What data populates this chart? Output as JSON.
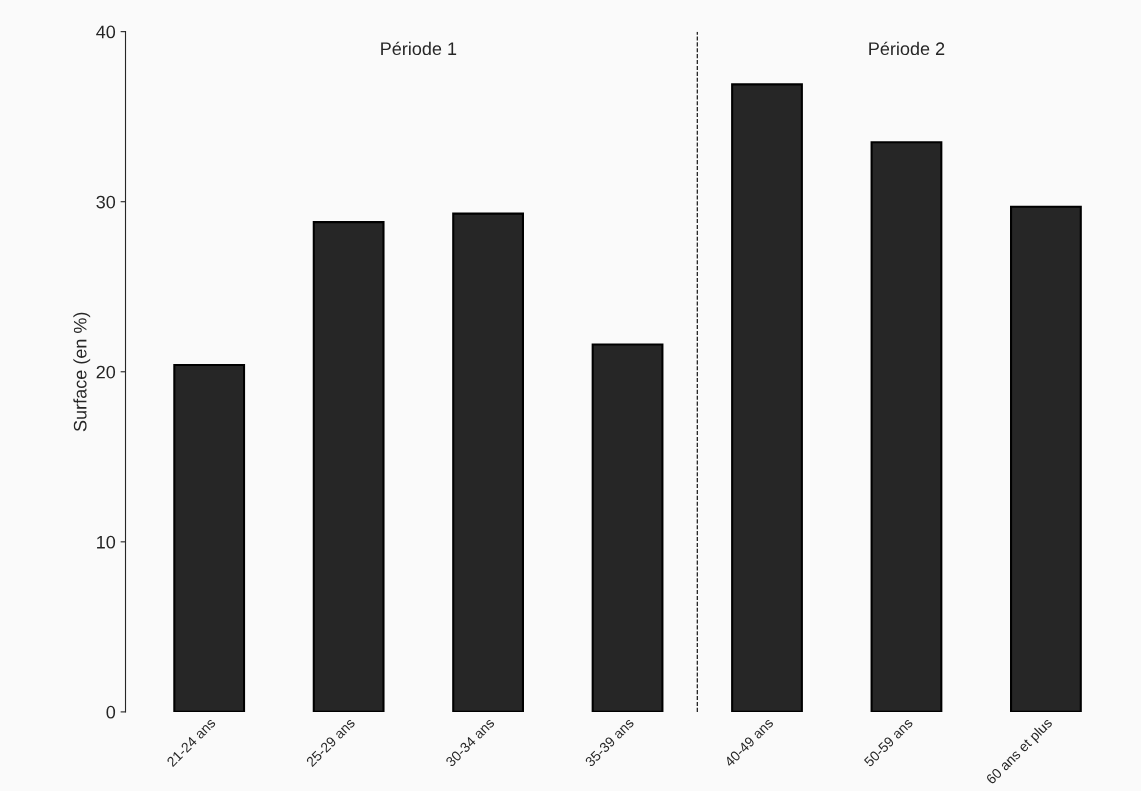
{
  "chart_data": {
    "type": "bar",
    "ylabel": "Surface (en %)",
    "categories": [
      "21-24 ans",
      "25-29 ans",
      "30-34 ans",
      "35-39 ans",
      "40-49 ans",
      "50-59 ans",
      "60 ans et plus"
    ],
    "values": [
      20.4,
      28.8,
      29.3,
      21.6,
      36.9,
      33.5,
      29.7
    ],
    "color": "#262626",
    "ylim": [
      0,
      40
    ],
    "yticks": [
      0,
      10,
      20,
      30,
      40
    ],
    "grid": false,
    "legend": false,
    "annotations": [
      "Période 1",
      "Période 2"
    ]
  }
}
